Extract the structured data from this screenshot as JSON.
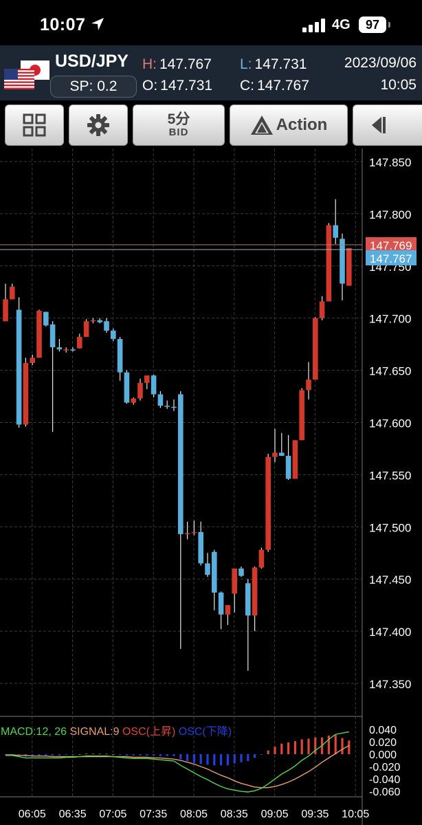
{
  "status_bar": {
    "time": "10:07",
    "network": "4G",
    "battery": "97"
  },
  "quote": {
    "symbol": "USD/JPY",
    "spread": "SP: 0.2",
    "high_label": "H:",
    "high": "147.767",
    "low_label": "L:",
    "low": "147.731",
    "open_label": "O:",
    "open": "147.731",
    "close_label": "C:",
    "close": "147.767",
    "date": "2023/09/06",
    "time": "10:05"
  },
  "toolbar": {
    "timeframe": "5分",
    "price_type": "BID",
    "action_label": "Action"
  },
  "colors": {
    "bull": "#d2392b",
    "bear": "#5ab0dc",
    "grid": "#3a3a3a",
    "macd_line": "#4fd84f",
    "signal_line": "#e9a06a",
    "osc_up": "#e0453a",
    "osc_down": "#1f3fe0"
  },
  "chart_data": [
    {
      "type": "candlestick",
      "y_ticks": [
        "147.850",
        "147.800",
        "147.750",
        "147.700",
        "147.650",
        "147.600",
        "147.550",
        "147.500",
        "147.450",
        "147.400",
        "147.350"
      ],
      "ylim": [
        147.32,
        147.86
      ],
      "x_ticks": [
        "06:05",
        "06:35",
        "07:05",
        "07:35",
        "08:05",
        "08:35",
        "09:05",
        "09:35",
        "10:05"
      ],
      "ask_marker": "147.769",
      "bid_marker": "147.767",
      "candles": [
        {
          "o": 147.697,
          "h": 147.733,
          "l": 147.697,
          "c": 147.718
        },
        {
          "o": 147.718,
          "h": 147.733,
          "l": 147.718,
          "c": 147.73
        },
        {
          "o": 147.708,
          "h": 147.72,
          "l": 147.595,
          "c": 147.598
        },
        {
          "o": 147.598,
          "h": 147.662,
          "l": 147.596,
          "c": 147.657
        },
        {
          "o": 147.657,
          "h": 147.665,
          "l": 147.655,
          "c": 147.662
        },
        {
          "o": 147.662,
          "h": 147.708,
          "l": 147.662,
          "c": 147.707
        },
        {
          "o": 147.706,
          "h": 147.706,
          "l": 147.692,
          "c": 147.693
        },
        {
          "o": 147.694,
          "h": 147.697,
          "l": 147.591,
          "c": 147.672
        },
        {
          "o": 147.672,
          "h": 147.68,
          "l": 147.668,
          "c": 147.67
        },
        {
          "o": 147.67,
          "h": 147.672,
          "l": 147.667,
          "c": 147.67
        },
        {
          "o": 147.67,
          "h": 147.672,
          "l": 147.668,
          "c": 147.669
        },
        {
          "o": 147.671,
          "h": 147.685,
          "l": 147.671,
          "c": 147.682
        },
        {
          "o": 147.682,
          "h": 147.699,
          "l": 147.682,
          "c": 147.697
        },
        {
          "o": 147.697,
          "h": 147.7,
          "l": 147.695,
          "c": 147.698
        },
        {
          "o": 147.698,
          "h": 147.7,
          "l": 147.695,
          "c": 147.696
        },
        {
          "o": 147.697,
          "h": 147.7,
          "l": 147.686,
          "c": 147.688
        },
        {
          "o": 147.688,
          "h": 147.69,
          "l": 147.678,
          "c": 147.68
        },
        {
          "o": 147.68,
          "h": 147.682,
          "l": 147.64,
          "c": 147.648
        },
        {
          "o": 147.648,
          "h": 147.65,
          "l": 147.618,
          "c": 147.619
        },
        {
          "o": 147.619,
          "h": 147.624,
          "l": 147.617,
          "c": 147.623
        },
        {
          "o": 147.623,
          "h": 147.642,
          "l": 147.621,
          "c": 147.638
        },
        {
          "o": 147.638,
          "h": 147.645,
          "l": 147.632,
          "c": 147.645
        },
        {
          "o": 147.645,
          "h": 147.646,
          "l": 147.624,
          "c": 147.627
        },
        {
          "o": 147.627,
          "h": 147.63,
          "l": 147.614,
          "c": 147.616
        },
        {
          "o": 147.616,
          "h": 147.621,
          "l": 147.613,
          "c": 147.615
        },
        {
          "o": 147.615,
          "h": 147.622,
          "l": 147.611,
          "c": 147.614
        },
        {
          "o": 147.627,
          "h": 147.63,
          "l": 147.383,
          "c": 147.493
        },
        {
          "o": 147.493,
          "h": 147.505,
          "l": 147.488,
          "c": 147.494
        },
        {
          "o": 147.494,
          "h": 147.506,
          "l": 147.492,
          "c": 147.495
        },
        {
          "o": 147.495,
          "h": 147.505,
          "l": 147.463,
          "c": 147.465
        },
        {
          "o": 147.465,
          "h": 147.475,
          "l": 147.452,
          "c": 147.454
        },
        {
          "o": 147.476,
          "h": 147.478,
          "l": 147.42,
          "c": 147.437
        },
        {
          "o": 147.437,
          "h": 147.438,
          "l": 147.402,
          "c": 147.416
        },
        {
          "o": 147.416,
          "h": 147.425,
          "l": 147.406,
          "c": 147.425
        },
        {
          "o": 147.436,
          "h": 147.46,
          "l": 147.418,
          "c": 147.46
        },
        {
          "o": 147.46,
          "h": 147.462,
          "l": 147.452,
          "c": 147.453
        },
        {
          "o": 147.446,
          "h": 147.45,
          "l": 147.362,
          "c": 147.415
        },
        {
          "o": 147.415,
          "h": 147.462,
          "l": 147.4,
          "c": 147.461
        },
        {
          "o": 147.461,
          "h": 147.48,
          "l": 147.46,
          "c": 147.478
        },
        {
          "o": 147.478,
          "h": 147.57,
          "l": 147.476,
          "c": 147.567
        },
        {
          "o": 147.567,
          "h": 147.594,
          "l": 147.562,
          "c": 147.571
        },
        {
          "o": 147.571,
          "h": 147.59,
          "l": 147.568,
          "c": 147.568
        },
        {
          "o": 147.568,
          "h": 147.588,
          "l": 147.545,
          "c": 147.546
        },
        {
          "o": 147.546,
          "h": 147.583,
          "l": 147.546,
          "c": 147.583
        },
        {
          "o": 147.583,
          "h": 147.633,
          "l": 147.583,
          "c": 147.631
        },
        {
          "o": 147.631,
          "h": 147.658,
          "l": 147.622,
          "c": 147.641
        },
        {
          "o": 147.641,
          "h": 147.701,
          "l": 147.641,
          "c": 147.7
        },
        {
          "o": 147.7,
          "h": 147.721,
          "l": 147.698,
          "c": 147.716
        },
        {
          "o": 147.716,
          "h": 147.791,
          "l": 147.716,
          "c": 147.789
        },
        {
          "o": 147.789,
          "h": 147.814,
          "l": 147.771,
          "c": 147.777
        },
        {
          "o": 147.776,
          "h": 147.781,
          "l": 147.717,
          "c": 147.733
        },
        {
          "o": 147.731,
          "h": 147.767,
          "l": 147.731,
          "c": 147.767
        }
      ]
    },
    {
      "type": "macd",
      "legend": [
        {
          "text": "MACD:12, 26",
          "color": "#4fd84f"
        },
        {
          "text": "SIGNAL:9",
          "color": "#e9a06a"
        },
        {
          "text": "OSC(上昇)",
          "color": "#e0453a"
        },
        {
          "text": "OSC(下降)",
          "color": "#1f3fe0"
        }
      ],
      "y_ticks": [
        "0.040",
        "0.020",
        "0.000",
        "-0.020",
        "-0.040",
        "-0.060"
      ],
      "ylim": [
        -0.066,
        0.054
      ],
      "macd": [
        -0.002,
        -0.002,
        -0.004,
        -0.006,
        -0.006,
        -0.006,
        -0.006,
        -0.006,
        -0.006,
        -0.005,
        -0.005,
        -0.004,
        -0.003,
        -0.003,
        -0.003,
        -0.003,
        -0.004,
        -0.005,
        -0.006,
        -0.007,
        -0.007,
        -0.007,
        -0.008,
        -0.009,
        -0.01,
        -0.011,
        -0.018,
        -0.024,
        -0.03,
        -0.036,
        -0.041,
        -0.047,
        -0.052,
        -0.056,
        -0.058,
        -0.06,
        -0.061,
        -0.059,
        -0.055,
        -0.048,
        -0.04,
        -0.032,
        -0.026,
        -0.019,
        -0.01,
        -0.003,
        0.006,
        0.014,
        0.024,
        0.032,
        0.034,
        0.036
      ],
      "signal": [
        -0.001,
        -0.001,
        -0.002,
        -0.002,
        -0.003,
        -0.003,
        -0.003,
        -0.004,
        -0.004,
        -0.004,
        -0.004,
        -0.004,
        -0.004,
        -0.004,
        -0.004,
        -0.004,
        -0.004,
        -0.004,
        -0.004,
        -0.005,
        -0.005,
        -0.005,
        -0.006,
        -0.006,
        -0.007,
        -0.008,
        -0.01,
        -0.013,
        -0.016,
        -0.02,
        -0.024,
        -0.029,
        -0.034,
        -0.038,
        -0.043,
        -0.047,
        -0.05,
        -0.053,
        -0.054,
        -0.054,
        -0.052,
        -0.049,
        -0.045,
        -0.04,
        -0.034,
        -0.028,
        -0.021,
        -0.013,
        -0.006,
        0.001,
        0.008,
        0.014
      ],
      "osc": [
        -0.001,
        -0.001,
        -0.002,
        -0.004,
        -0.003,
        -0.003,
        -0.003,
        -0.002,
        -0.002,
        -0.001,
        -0.001,
        0.0,
        0.001,
        0.001,
        0.001,
        0.001,
        0.0,
        -0.001,
        -0.002,
        -0.002,
        -0.002,
        -0.002,
        -0.002,
        -0.003,
        -0.003,
        -0.003,
        -0.008,
        -0.011,
        -0.014,
        -0.016,
        -0.017,
        -0.018,
        -0.018,
        -0.018,
        -0.015,
        -0.013,
        -0.011,
        -0.006,
        -0.001,
        0.006,
        0.012,
        0.017,
        0.019,
        0.021,
        0.024,
        0.025,
        0.027,
        0.027,
        0.03,
        0.031,
        0.026,
        0.022
      ]
    }
  ]
}
